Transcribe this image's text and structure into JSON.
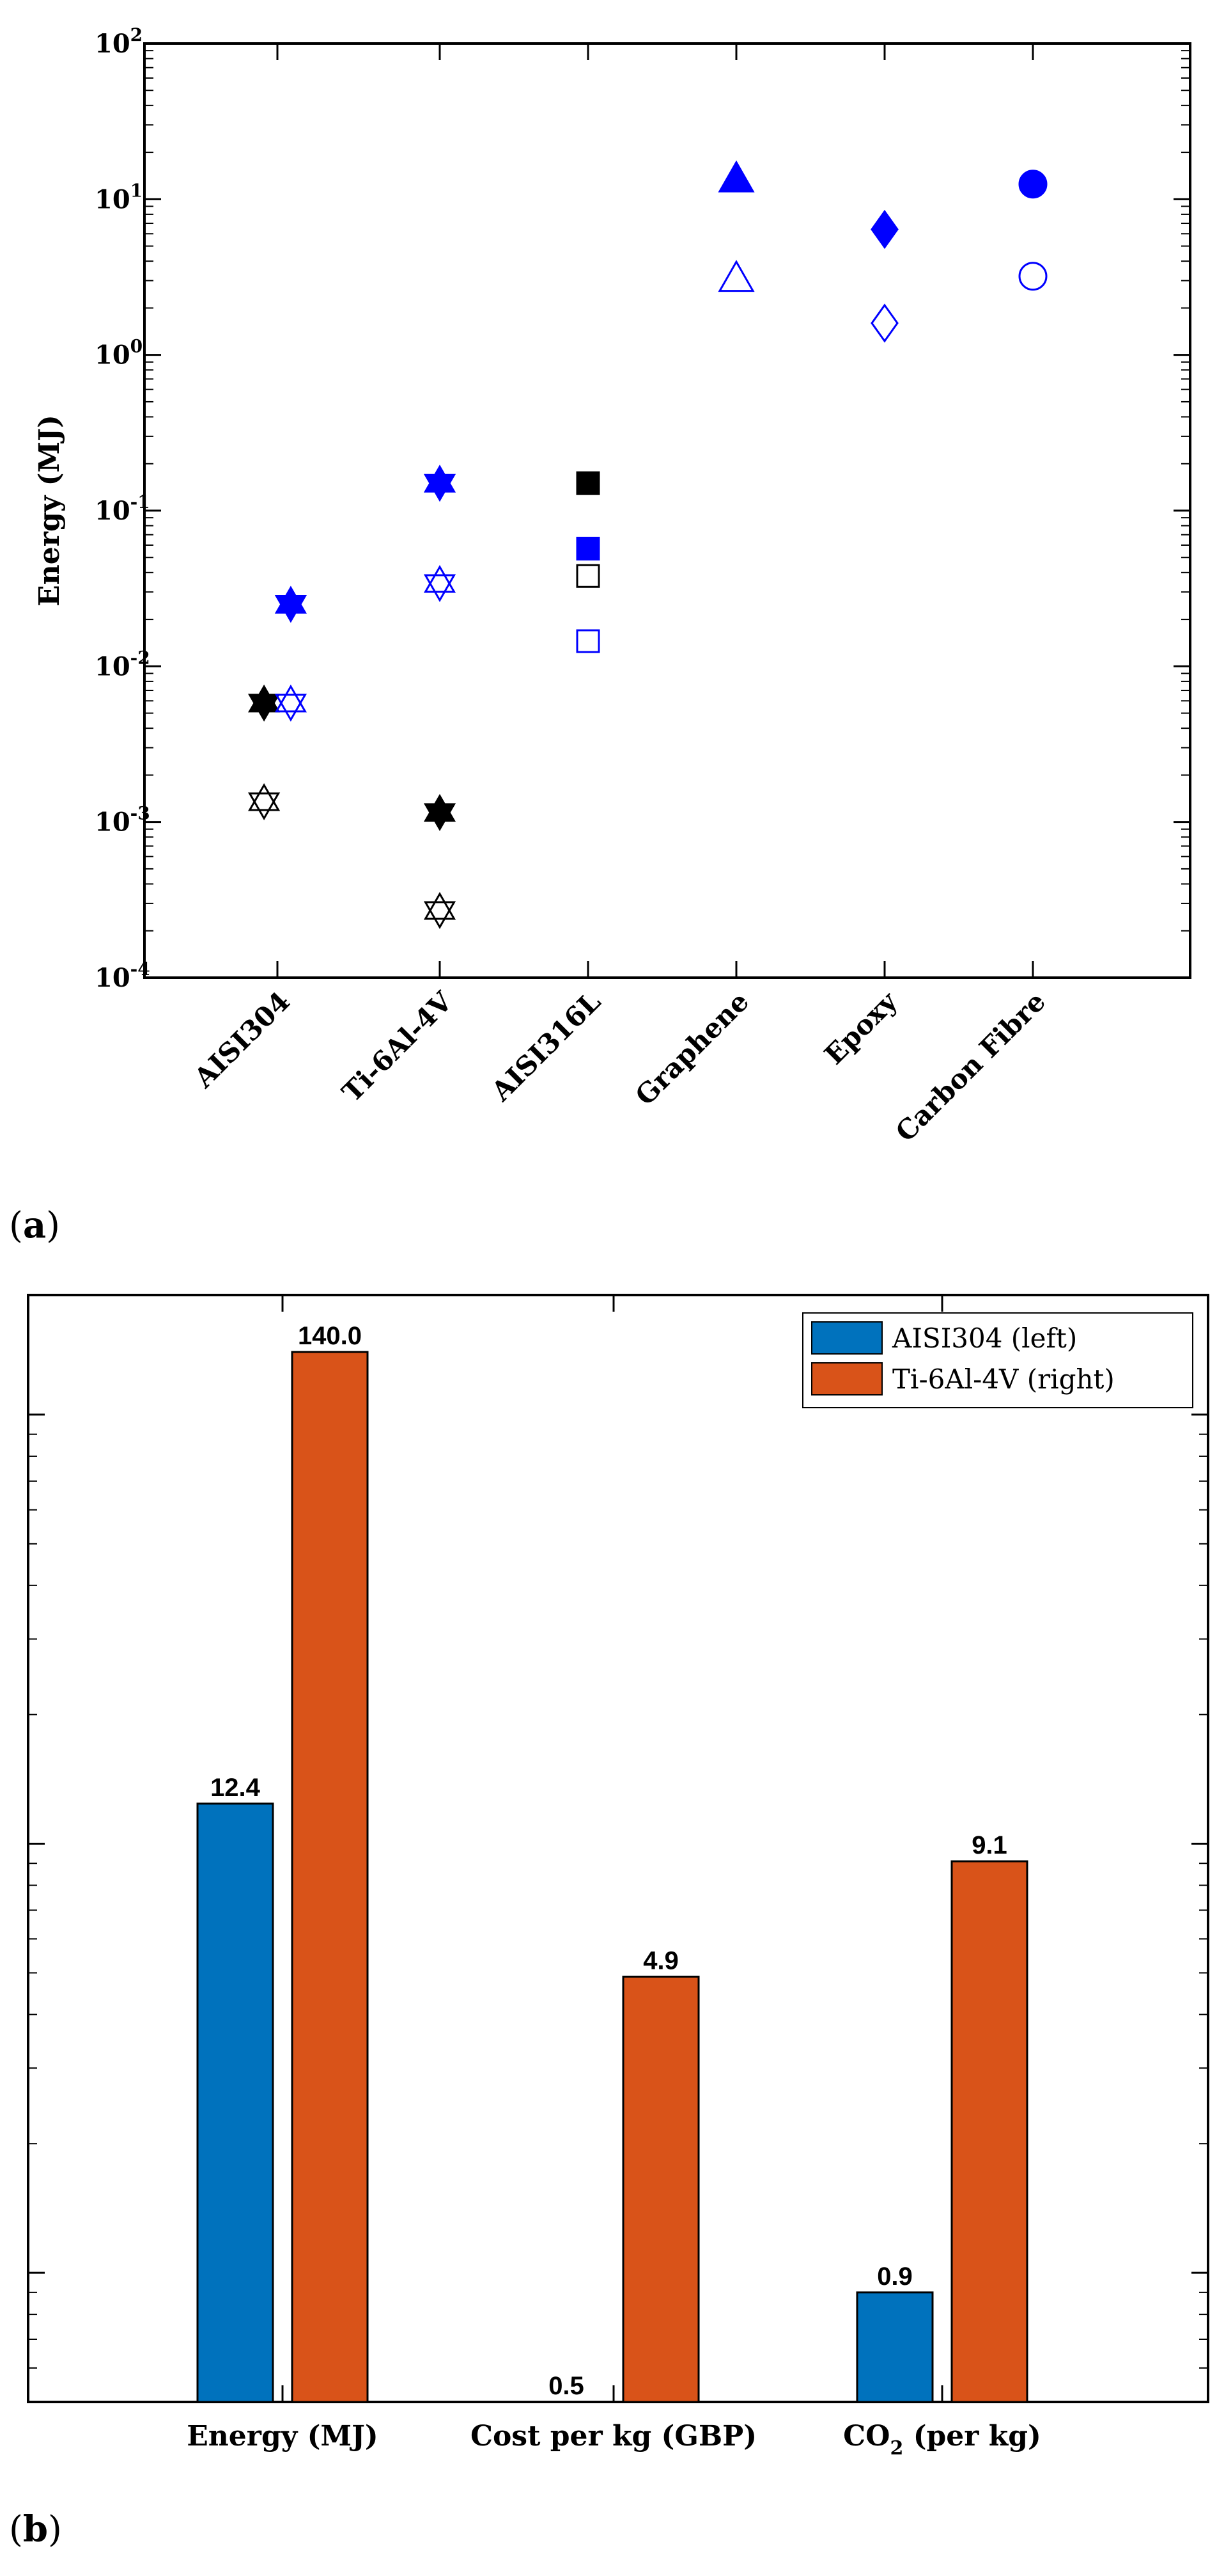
{
  "chart_data": [
    {
      "type": "scatter",
      "panel_label": "(a)",
      "title": "",
      "ylabel": "Energy (MJ)",
      "xlabel": "",
      "yscale": "log",
      "ylim": [
        0.0001,
        100
      ],
      "yticks": [
        {
          "value": 0.0001,
          "base": "10",
          "exp": "-4"
        },
        {
          "value": 0.001,
          "base": "10",
          "exp": "-3"
        },
        {
          "value": 0.01,
          "base": "10",
          "exp": "-2"
        },
        {
          "value": 0.1,
          "base": "10",
          "exp": "-1"
        },
        {
          "value": 1,
          "base": "10",
          "exp": "0"
        },
        {
          "value": 10,
          "base": "10",
          "exp": "1"
        },
        {
          "value": 100,
          "base": "10",
          "exp": "2"
        }
      ],
      "categories": [
        "AISI304",
        "Ti-6Al-4V",
        "AISI316L",
        "Graphene",
        "Epoxy",
        "Carbon Fibre"
      ],
      "colors": {
        "black": "#000000",
        "blue": "#0000ff"
      },
      "points": [
        {
          "category": "AISI304",
          "offset": -0.09,
          "y": 0.0058,
          "marker": "hexagram",
          "color": "black",
          "filled": true
        },
        {
          "category": "AISI304",
          "offset": -0.09,
          "y": 0.00135,
          "marker": "hexagram",
          "color": "black",
          "filled": false
        },
        {
          "category": "AISI304",
          "offset": 0.09,
          "y": 0.025,
          "marker": "hexagram",
          "color": "blue",
          "filled": true
        },
        {
          "category": "AISI304",
          "offset": 0.09,
          "y": 0.0058,
          "marker": "hexagram",
          "color": "blue",
          "filled": false
        },
        {
          "category": "Ti-6Al-4V",
          "offset": 0,
          "y": 0.15,
          "marker": "hexagram",
          "color": "blue",
          "filled": true
        },
        {
          "category": "Ti-6Al-4V",
          "offset": 0,
          "y": 0.034,
          "marker": "hexagram",
          "color": "blue",
          "filled": false
        },
        {
          "category": "Ti-6Al-4V",
          "offset": 0,
          "y": 0.00115,
          "marker": "hexagram",
          "color": "black",
          "filled": true
        },
        {
          "category": "Ti-6Al-4V",
          "offset": 0,
          "y": 0.00027,
          "marker": "hexagram",
          "color": "black",
          "filled": false
        },
        {
          "category": "AISI316L",
          "offset": 0,
          "y": 0.15,
          "marker": "square",
          "color": "black",
          "filled": true
        },
        {
          "category": "AISI316L",
          "offset": 0,
          "y": 0.057,
          "marker": "square",
          "color": "blue",
          "filled": true
        },
        {
          "category": "AISI316L",
          "offset": 0,
          "y": 0.038,
          "marker": "square",
          "color": "black",
          "filled": false
        },
        {
          "category": "AISI316L",
          "offset": 0,
          "y": 0.0145,
          "marker": "square",
          "color": "blue",
          "filled": false
        },
        {
          "category": "Graphene",
          "offset": 0,
          "y": 13.5,
          "marker": "triangle",
          "color": "blue",
          "filled": true
        },
        {
          "category": "Graphene",
          "offset": 0,
          "y": 3.1,
          "marker": "triangle",
          "color": "blue",
          "filled": false
        },
        {
          "category": "Epoxy",
          "offset": 0,
          "y": 6.4,
          "marker": "diamond",
          "color": "blue",
          "filled": true
        },
        {
          "category": "Epoxy",
          "offset": 0,
          "y": 1.6,
          "marker": "diamond",
          "color": "blue",
          "filled": false
        },
        {
          "category": "Carbon Fibre",
          "offset": 0,
          "y": 12.5,
          "marker": "circle",
          "color": "blue",
          "filled": true
        },
        {
          "category": "Carbon Fibre",
          "offset": 0,
          "y": 3.2,
          "marker": "circle",
          "color": "blue",
          "filled": false
        }
      ]
    },
    {
      "type": "bar",
      "panel_label": "(b)",
      "title": "",
      "xlabel": "",
      "ylabel": "",
      "yscale": "log",
      "ylim": [
        0.5,
        190
      ],
      "categories": [
        "Energy (MJ)",
        "Cost per kg (GBP)",
        "CO2 (per kg)"
      ],
      "category_labels": [
        {
          "main": "Energy (MJ)"
        },
        {
          "main": "Cost per kg (GBP)"
        },
        {
          "main": "CO",
          "sub": "2",
          "rest": " (per kg)"
        }
      ],
      "series": [
        {
          "name": "AISI304 (left)",
          "color": "#0072bd",
          "values": [
            12.4,
            0.5,
            0.9
          ],
          "labels": [
            "12.4",
            "0.5",
            "0.9"
          ]
        },
        {
          "name": "Ti-6Al-4V (right)",
          "color": "#d95319",
          "values": [
            140.0,
            4.9,
            9.1
          ],
          "labels": [
            "140.0",
            "4.9",
            "9.1"
          ]
        }
      ],
      "legend_position": "top-right"
    }
  ]
}
